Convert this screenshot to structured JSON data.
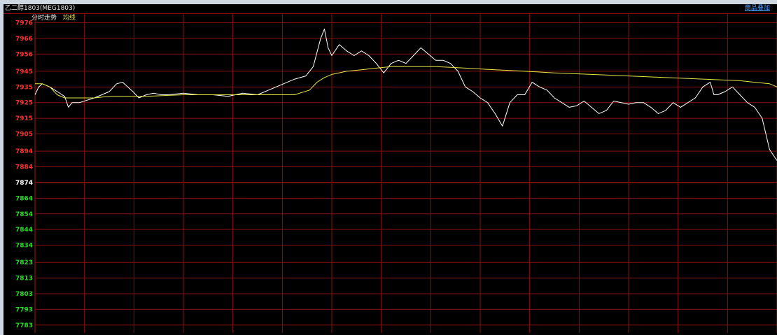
{
  "window": {
    "title": "乙二醇1803(MEG1803)",
    "overlay_button": "商品叠加"
  },
  "legend": {
    "price_label": "分时走势",
    "avg_label": "均线"
  },
  "colors": {
    "background": "#000000",
    "grid": "#8a1010",
    "up_tick": "#ff3030",
    "down_tick": "#22dd22",
    "base_tick": "#ffffff",
    "price_line": "#ffffff",
    "avg_line": "#e6e64a"
  },
  "chart_data": {
    "type": "line",
    "title": "",
    "xlabel": "",
    "ylabel": "",
    "ylim": [
      7778,
      7978
    ],
    "base_value": 7874,
    "y_ticks": [
      7976,
      7966,
      7956,
      7945,
      7935,
      7925,
      7915,
      7905,
      7894,
      7884,
      7874,
      7864,
      7854,
      7844,
      7834,
      7823,
      7813,
      7803,
      7793,
      7783
    ],
    "x_range": [
      0,
      1000
    ],
    "grid": true,
    "series": [
      {
        "name": "分时走势",
        "x": [
          0,
          5,
          10,
          20,
          30,
          40,
          45,
          50,
          60,
          80,
          100,
          110,
          118,
          125,
          132,
          140,
          150,
          160,
          170,
          180,
          200,
          220,
          240,
          260,
          280,
          300,
          310,
          330,
          350,
          365,
          375,
          385,
          390,
          395,
          400,
          410,
          420,
          430,
          440,
          450,
          460,
          470,
          480,
          490,
          500,
          510,
          520,
          530,
          540,
          550,
          560,
          570,
          580,
          590,
          600,
          610,
          620,
          630,
          640,
          650,
          660,
          670,
          680,
          690,
          700,
          710,
          720,
          730,
          740,
          750,
          760,
          770,
          780,
          790,
          800,
          810,
          820,
          830,
          840,
          850,
          860,
          870,
          880,
          890,
          900,
          910,
          915,
          920,
          930,
          940,
          950,
          960,
          970,
          980,
          990,
          1000
        ],
        "values": [
          7930,
          7935,
          7937,
          7935,
          7932,
          7929,
          7922,
          7925,
          7925,
          7928,
          7932,
          7937,
          7938,
          7935,
          7932,
          7928,
          7930,
          7931,
          7930,
          7930,
          7931,
          7930,
          7930,
          7929,
          7931,
          7930,
          7932,
          7936,
          7940,
          7942,
          7948,
          7966,
          7972,
          7960,
          7955,
          7962,
          7958,
          7955,
          7958,
          7955,
          7950,
          7944,
          7950,
          7952,
          7950,
          7955,
          7960,
          7956,
          7952,
          7952,
          7950,
          7945,
          7935,
          7932,
          7928,
          7925,
          7918,
          7910,
          7925,
          7930,
          7930,
          7938,
          7935,
          7933,
          7928,
          7925,
          7922,
          7923,
          7926,
          7922,
          7918,
          7920,
          7926,
          7925,
          7924,
          7925,
          7925,
          7922,
          7918,
          7920,
          7925,
          7922,
          7925,
          7928,
          7935,
          7938,
          7930,
          7930,
          7932,
          7935,
          7930,
          7925,
          7922,
          7915,
          7895,
          7888
        ]
      },
      {
        "name": "均线",
        "x": [
          0,
          10,
          20,
          30,
          40,
          50,
          60,
          80,
          100,
          150,
          200,
          250,
          300,
          350,
          370,
          380,
          390,
          400,
          420,
          440,
          460,
          480,
          500,
          520,
          540,
          560,
          580,
          600,
          620,
          640,
          660,
          680,
          700,
          750,
          800,
          850,
          900,
          950,
          970,
          990,
          1000
        ],
        "values": [
          7937,
          7937,
          7935,
          7930,
          7928,
          7928,
          7928,
          7928,
          7929,
          7929,
          7930,
          7930,
          7930,
          7930,
          7933,
          7938,
          7941,
          7943,
          7945,
          7946,
          7947,
          7948,
          7948,
          7948,
          7948,
          7947.5,
          7947,
          7946.5,
          7946,
          7945.5,
          7945,
          7944.5,
          7944,
          7943,
          7942,
          7941,
          7940,
          7939,
          7938,
          7937,
          7935
        ]
      }
    ]
  }
}
